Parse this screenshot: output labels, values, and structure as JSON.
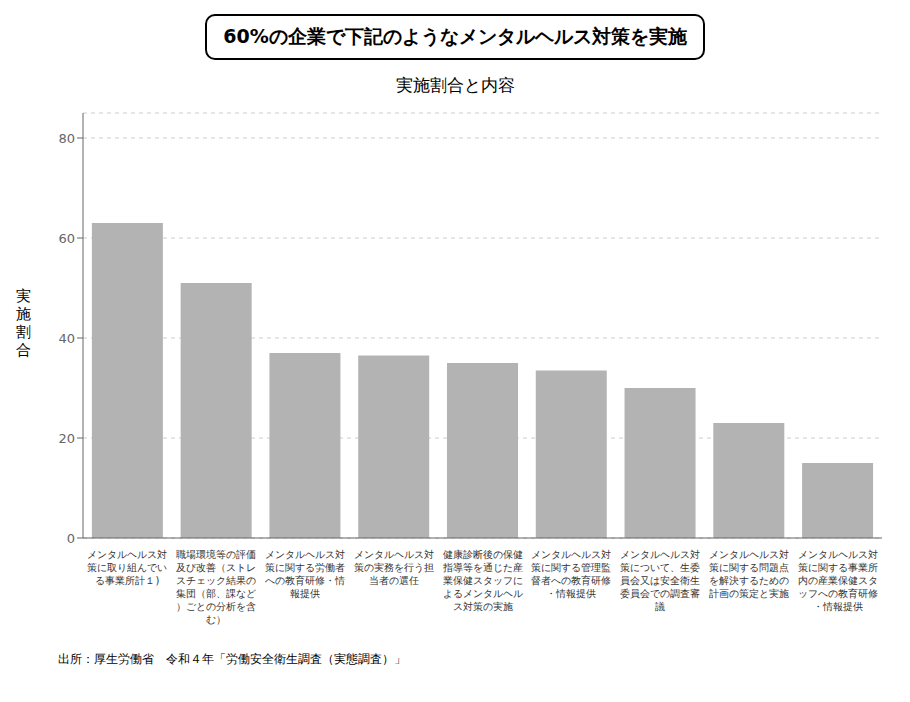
{
  "chart_data": {
    "type": "bar",
    "title": "60%の企業で下記のようなメンタルヘルス対策を実施",
    "subtitle": "実施割合と内容",
    "ylabel": "実施割合",
    "categories": [
      "メンタルヘルス対策に取り組んでいる事業所計１)",
      "職場環境等の評価及び改善（ストレスチェック結果の集団（部、課など）ごとの分析を含む）",
      "メンタルヘルス対策に関する労働者への教育研修・情報提供",
      "メンタルヘルス対策の実務を行う担当者の選任",
      "健康診断後の保健指導等を通じた産業保健スタッフによるメンタルヘルス対策の実施",
      "メンタルヘルス対策に関する管理監督者への教育研修・情報提供",
      "メンタルヘルス対策について、生委員会又は安全衛生委員会での調査審議",
      "メンタルヘルス対策に関する問題点を解決するための計画の策定と実施",
      "メンタルヘルス対策に関する事業所内の産業保健スタッフへの教育研修・情報提供"
    ],
    "values": [
      63,
      51,
      37,
      36.5,
      35,
      33.5,
      30,
      23,
      15
    ],
    "color": "#b3b3b3",
    "ylim": [
      0,
      85
    ],
    "yticks": [
      0,
      20,
      40,
      60,
      80
    ],
    "grid": true,
    "annotations": [
      "出所：厚生労働省　令和４年「労働安全衛生調査（実態調査）」"
    ]
  }
}
